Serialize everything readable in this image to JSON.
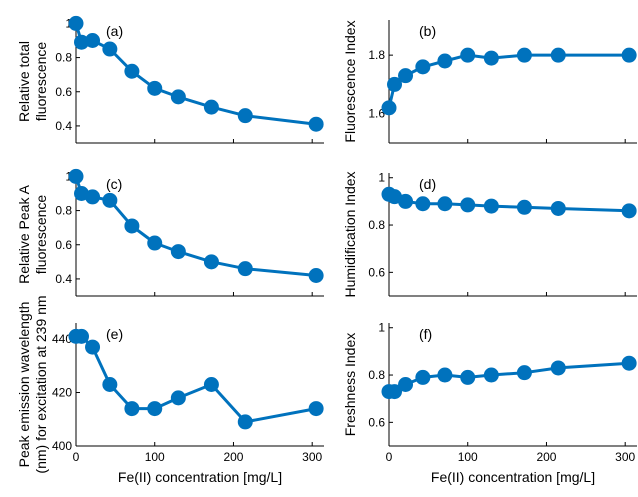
{
  "colors": {
    "series": "#0072bd",
    "axis": "#000000"
  },
  "chart_data": [
    {
      "type": "line",
      "panel_label": "(a)",
      "ylabel": [
        "Relative total",
        "fluorescence"
      ],
      "xlabel": "",
      "x": [
        0,
        7,
        21,
        43,
        71,
        100,
        130,
        172,
        215,
        305
      ],
      "y": [
        1.0,
        0.89,
        0.9,
        0.85,
        0.72,
        0.62,
        0.57,
        0.51,
        0.46,
        0.41
      ],
      "xlim": [
        0,
        315
      ],
      "ylim": [
        0.3,
        1.02
      ],
      "xticks": [],
      "yticks": [
        0.4,
        0.6,
        0.8,
        1
      ],
      "ytick_labels": [
        "0.4",
        "0.6",
        "0.8",
        "1"
      ]
    },
    {
      "type": "line",
      "panel_label": "(b)",
      "ylabel": [
        "Fluorescence Index"
      ],
      "xlabel": "",
      "x": [
        0,
        7,
        21,
        43,
        71,
        100,
        130,
        172,
        215,
        305
      ],
      "y": [
        1.62,
        1.7,
        1.73,
        1.76,
        1.78,
        1.8,
        1.79,
        1.8,
        1.8,
        1.8
      ],
      "xlim": [
        0,
        315
      ],
      "ylim": [
        1.5,
        1.92
      ],
      "xticks": [],
      "yticks": [
        1.6,
        1.8
      ],
      "ytick_labels": [
        "1.6",
        "1.8"
      ]
    },
    {
      "type": "line",
      "panel_label": "(c)",
      "ylabel": [
        "Relative Peak A",
        "fluorescence"
      ],
      "xlabel": "",
      "x": [
        0,
        7,
        21,
        43,
        71,
        100,
        130,
        172,
        215,
        305
      ],
      "y": [
        1.0,
        0.9,
        0.88,
        0.86,
        0.71,
        0.61,
        0.56,
        0.5,
        0.46,
        0.42
      ],
      "xlim": [
        0,
        315
      ],
      "ylim": [
        0.3,
        1.02
      ],
      "xticks": [],
      "yticks": [
        0.4,
        0.6,
        0.8,
        1
      ],
      "ytick_labels": [
        "0.4",
        "0.6",
        "0.8",
        "1"
      ]
    },
    {
      "type": "line",
      "panel_label": "(d)",
      "ylabel": [
        "Humidification Index"
      ],
      "xlabel": "",
      "x": [
        0,
        7,
        21,
        43,
        71,
        100,
        130,
        172,
        215,
        305
      ],
      "y": [
        0.93,
        0.92,
        0.9,
        0.89,
        0.89,
        0.885,
        0.88,
        0.875,
        0.87,
        0.86
      ],
      "xlim": [
        0,
        315
      ],
      "ylim": [
        0.5,
        1.02
      ],
      "xticks": [],
      "yticks": [
        0.6,
        0.8,
        1
      ],
      "ytick_labels": [
        "0.6",
        "0.8",
        "1"
      ]
    },
    {
      "type": "line",
      "panel_label": "(e)",
      "ylabel": [
        "Peak emission wavelength",
        "(nm) for excitation at 239 nm"
      ],
      "xlabel": "Fe(II) concentration [mg/L]",
      "x": [
        0,
        7,
        21,
        43,
        71,
        100,
        130,
        172,
        215,
        305
      ],
      "y": [
        441,
        441,
        437,
        423,
        414,
        414,
        418,
        423,
        409,
        414
      ],
      "xlim": [
        0,
        315
      ],
      "ylim": [
        400,
        446
      ],
      "xticks": [
        0,
        100,
        200,
        300
      ],
      "yticks": [
        400,
        420,
        440
      ],
      "ytick_labels": [
        "400",
        "420",
        "440"
      ]
    },
    {
      "type": "line",
      "panel_label": "(f)",
      "ylabel": [
        "Freshness Index"
      ],
      "xlabel": "Fe(II) concentration [mg/L]",
      "x": [
        0,
        7,
        21,
        43,
        71,
        100,
        130,
        172,
        215,
        305
      ],
      "y": [
        0.73,
        0.73,
        0.76,
        0.79,
        0.8,
        0.79,
        0.8,
        0.81,
        0.83,
        0.85
      ],
      "xlim": [
        0,
        315
      ],
      "ylim": [
        0.5,
        1.02
      ],
      "xticks": [
        0,
        100,
        200,
        300
      ],
      "yticks": [
        0.6,
        0.8,
        1
      ],
      "ytick_labels": [
        "0.6",
        "0.8",
        "1"
      ]
    }
  ]
}
